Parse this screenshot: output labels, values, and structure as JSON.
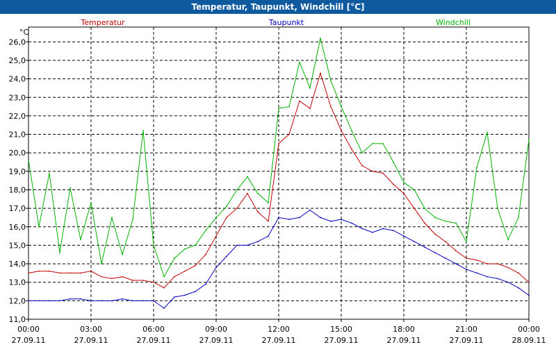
{
  "window": {
    "title": "Temperatur, Taupunkt, Windchill [°C]"
  },
  "chart_data": {
    "type": "line",
    "title": "Temperatur, Taupunkt, Windchill [°C]",
    "ylabel": "°C",
    "ylim": [
      11,
      26.8
    ],
    "xlim": [
      0,
      24
    ],
    "grid": true,
    "legend_placement": "top",
    "y_ticks": [
      "26,0",
      "25,0",
      "24,0",
      "23,0",
      "22,0",
      "21,0",
      "20,0",
      "19,0",
      "18,0",
      "17,0",
      "16,0",
      "15,0",
      "14,0",
      "13,0",
      "12,0",
      "11,0"
    ],
    "x_ticks": [
      {
        "time": "00:00",
        "date": "27.09.11"
      },
      {
        "time": "03:00",
        "date": "27.09.11"
      },
      {
        "time": "06:00",
        "date": "27.09.11"
      },
      {
        "time": "09:00",
        "date": "27.09.11"
      },
      {
        "time": "12:00",
        "date": "27.09.11"
      },
      {
        "time": "15:00",
        "date": "27.09.11"
      },
      {
        "time": "18:00",
        "date": "27.09.11"
      },
      {
        "time": "21:00",
        "date": "27.09.11"
      },
      {
        "time": "00:00",
        "date": "28.09.11"
      }
    ],
    "x_hours": [
      0,
      0.5,
      1,
      1.5,
      2,
      2.5,
      3,
      3.5,
      4,
      4.5,
      5,
      5.5,
      6,
      6.5,
      7,
      7.5,
      8,
      8.5,
      9,
      9.5,
      10,
      10.5,
      11,
      11.5,
      12,
      12.5,
      13,
      13.5,
      14,
      14.5,
      15,
      15.5,
      16,
      16.5,
      17,
      17.5,
      18,
      18.5,
      19,
      19.5,
      20,
      20.5,
      21,
      21.5,
      22,
      22.5,
      23,
      23.5,
      24
    ],
    "series": [
      {
        "name": "Temperatur",
        "color": "#c00000",
        "values": [
          13.5,
          13.6,
          13.6,
          13.5,
          13.5,
          13.5,
          13.6,
          13.3,
          13.2,
          13.3,
          13.1,
          13.1,
          13.0,
          12.7,
          13.3,
          13.6,
          13.9,
          14.5,
          15.5,
          16.5,
          17.0,
          17.8,
          16.8,
          16.3,
          20.5,
          21.0,
          22.8,
          22.4,
          24.3,
          22.5,
          21.2,
          20.2,
          19.3,
          19.0,
          18.9,
          18.3,
          17.8,
          17.0,
          16.2,
          15.6,
          15.2,
          14.7,
          14.3,
          14.2,
          14.0,
          14.0,
          13.8,
          13.5,
          13.0
        ]
      },
      {
        "name": "Taupunkt",
        "color": "#0000c0",
        "values": [
          12.0,
          12.0,
          12.0,
          12.0,
          12.1,
          12.1,
          12.0,
          12.0,
          12.0,
          12.1,
          12.0,
          12.0,
          12.0,
          11.6,
          12.2,
          12.3,
          12.5,
          12.9,
          13.8,
          14.4,
          15.0,
          15.0,
          15.2,
          15.5,
          16.5,
          16.4,
          16.5,
          16.9,
          16.5,
          16.3,
          16.4,
          16.2,
          15.9,
          15.7,
          15.9,
          15.8,
          15.5,
          15.2,
          14.9,
          14.6,
          14.3,
          14.0,
          13.7,
          13.5,
          13.3,
          13.2,
          13.0,
          12.7,
          12.3
        ]
      },
      {
        "name": "Windchill",
        "color": "#00b000",
        "values": [
          19.6,
          16.0,
          18.9,
          14.6,
          18.1,
          15.3,
          17.3,
          14.0,
          16.5,
          14.5,
          16.4,
          21.2,
          15.0,
          13.3,
          14.3,
          14.8,
          15.0,
          15.8,
          16.5,
          17.1,
          18.0,
          18.7,
          17.8,
          17.3,
          22.4,
          22.5,
          24.9,
          23.5,
          26.2,
          23.9,
          22.5,
          21.2,
          20.0,
          20.5,
          20.5,
          19.5,
          18.4,
          18.0,
          17.0,
          16.5,
          16.3,
          16.2,
          15.2,
          19.2,
          21.1,
          17.0,
          15.3,
          16.5,
          20.7
        ]
      }
    ]
  }
}
